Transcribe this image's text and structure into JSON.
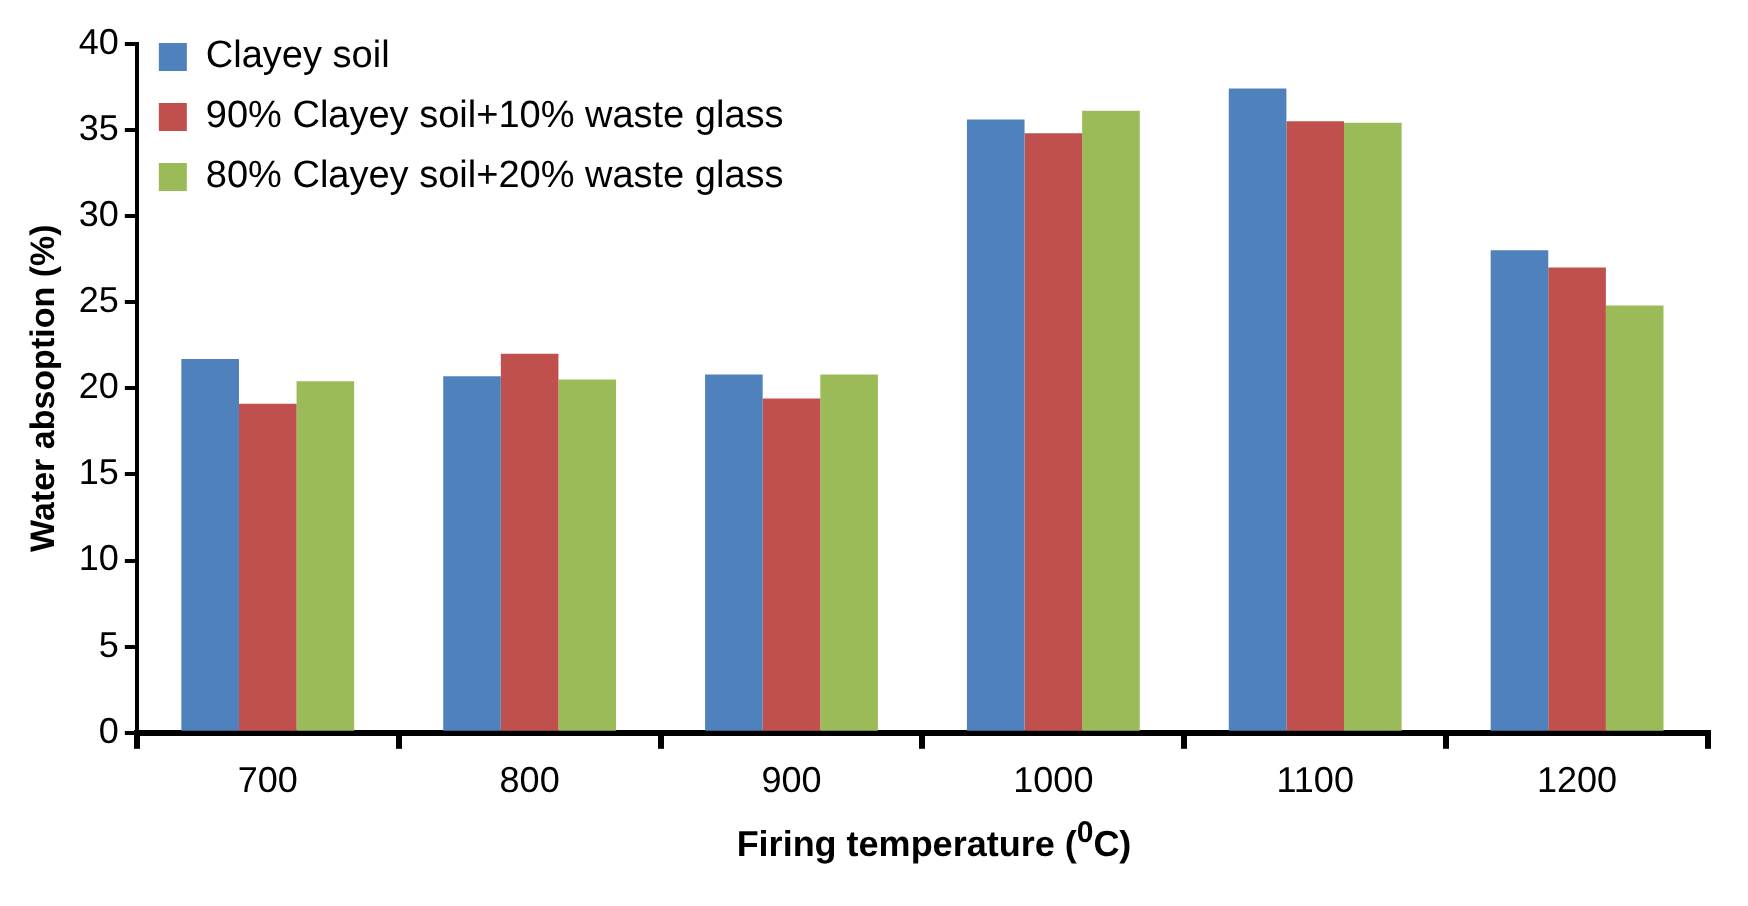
{
  "chart_data": {
    "type": "bar",
    "xlabel": "Firing temperature ($^{0}$C)",
    "ylabel": "Water absoption (%)",
    "categories": [
      "700",
      "800",
      "900",
      "1000",
      "1100",
      "1200"
    ],
    "series": [
      {
        "name": "Clayey soil",
        "color": "#4f81bd",
        "values": [
          21.7,
          20.7,
          20.8,
          35.6,
          37.4,
          28.0
        ]
      },
      {
        "name": "90% Clayey soil+10% waste glass",
        "color": "#c0504d",
        "values": [
          19.1,
          22.0,
          19.4,
          34.8,
          35.5,
          27.0
        ]
      },
      {
        "name": "80% Clayey soil+20% waste glass",
        "color": "#9bbb59",
        "values": [
          20.4,
          20.5,
          20.8,
          36.1,
          35.4,
          24.8
        ]
      }
    ],
    "ylim": [
      0,
      40
    ],
    "yticks": [
      0,
      5,
      10,
      15,
      20,
      25,
      30,
      35,
      40
    ],
    "grid": false,
    "legend": "top left"
  }
}
